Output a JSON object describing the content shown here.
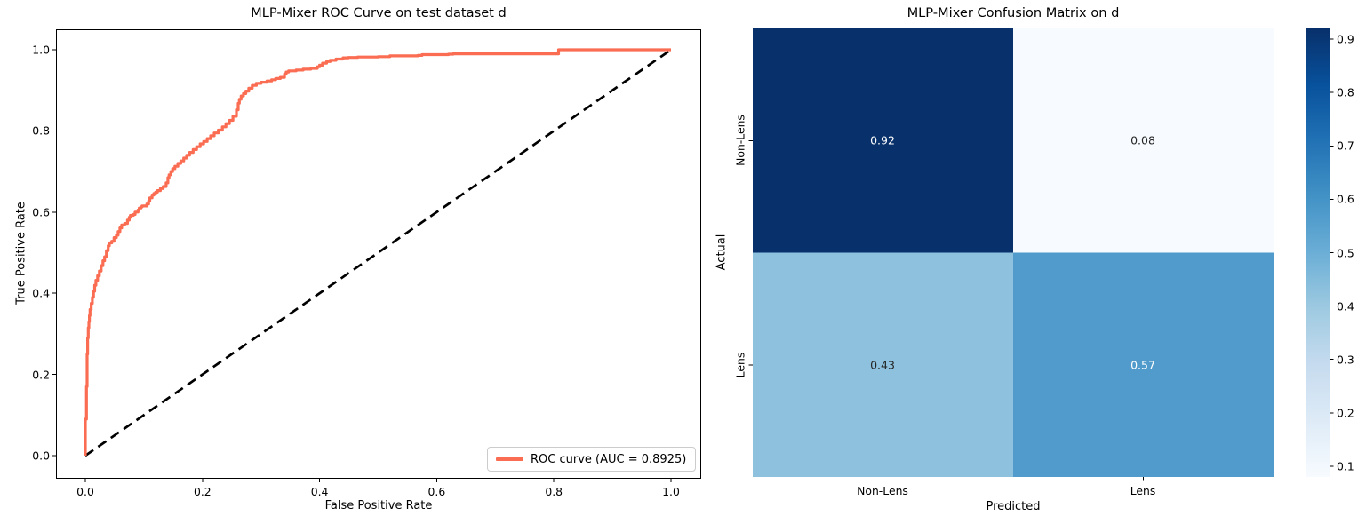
{
  "figure_bg": "#ffffff",
  "chart_data": [
    {
      "type": "line",
      "title": "MLP-Mixer ROC Curve on test dataset d",
      "xlabel": "False Positive Rate",
      "ylabel": "True Positive Rate",
      "xlim": [
        -0.05,
        1.05
      ],
      "ylim": [
        -0.05,
        1.05
      ],
      "grid": false,
      "auc": 0.8925,
      "legend": {
        "position": "lower right",
        "entries": [
          "ROC curve (AUC = 0.8925)"
        ]
      },
      "xticks": {
        "values": [
          0.0,
          0.2,
          0.4,
          0.6,
          0.8,
          1.0
        ],
        "labels": [
          "0.0",
          "0.2",
          "0.4",
          "0.6",
          "0.8",
          "1.0"
        ]
      },
      "yticks": {
        "values": [
          0.0,
          0.2,
          0.4,
          0.6,
          0.8,
          1.0
        ],
        "labels": [
          "0.0",
          "0.2",
          "0.4",
          "0.6",
          "0.8",
          "1.0"
        ]
      },
      "series": [
        {
          "name": "ROC curve (AUC = 0.8925)",
          "color": "#FB6D53",
          "style": "steps",
          "linewidth": 3.2,
          "points": [
            [
              0.0,
              0.0
            ],
            [
              0.0,
              0.05
            ],
            [
              0.002,
              0.09
            ],
            [
              0.002,
              0.13
            ],
            [
              0.003,
              0.17
            ],
            [
              0.003,
              0.21
            ],
            [
              0.004,
              0.25
            ],
            [
              0.005,
              0.29
            ],
            [
              0.006,
              0.315
            ],
            [
              0.007,
              0.33
            ],
            [
              0.008,
              0.345
            ],
            [
              0.01,
              0.36
            ],
            [
              0.012,
              0.375
            ],
            [
              0.014,
              0.39
            ],
            [
              0.016,
              0.405
            ],
            [
              0.018,
              0.42
            ],
            [
              0.021,
              0.432
            ],
            [
              0.024,
              0.443
            ],
            [
              0.027,
              0.455
            ],
            [
              0.03,
              0.468
            ],
            [
              0.033,
              0.48
            ],
            [
              0.036,
              0.49
            ],
            [
              0.039,
              0.505
            ],
            [
              0.041,
              0.517
            ],
            [
              0.045,
              0.524
            ],
            [
              0.049,
              0.528
            ],
            [
              0.053,
              0.537
            ],
            [
              0.056,
              0.543
            ],
            [
              0.059,
              0.552
            ],
            [
              0.062,
              0.561
            ],
            [
              0.067,
              0.568
            ],
            [
              0.072,
              0.572
            ],
            [
              0.075,
              0.58
            ],
            [
              0.077,
              0.587
            ],
            [
              0.082,
              0.592
            ],
            [
              0.085,
              0.594
            ],
            [
              0.09,
              0.6
            ],
            [
              0.092,
              0.605
            ],
            [
              0.095,
              0.61
            ],
            [
              0.097,
              0.613
            ],
            [
              0.105,
              0.615
            ],
            [
              0.108,
              0.62
            ],
            [
              0.11,
              0.627
            ],
            [
              0.114,
              0.635
            ],
            [
              0.117,
              0.642
            ],
            [
              0.12,
              0.646
            ],
            [
              0.123,
              0.649
            ],
            [
              0.128,
              0.653
            ],
            [
              0.133,
              0.658
            ],
            [
              0.138,
              0.663
            ],
            [
              0.141,
              0.672
            ],
            [
              0.143,
              0.685
            ],
            [
              0.146,
              0.692
            ],
            [
              0.149,
              0.7
            ],
            [
              0.153,
              0.707
            ],
            [
              0.158,
              0.713
            ],
            [
              0.163,
              0.72
            ],
            [
              0.168,
              0.726
            ],
            [
              0.173,
              0.733
            ],
            [
              0.178,
              0.74
            ],
            [
              0.184,
              0.747
            ],
            [
              0.19,
              0.754
            ],
            [
              0.196,
              0.761
            ],
            [
              0.202,
              0.768
            ],
            [
              0.208,
              0.774
            ],
            [
              0.214,
              0.781
            ],
            [
              0.22,
              0.788
            ],
            [
              0.227,
              0.795
            ],
            [
              0.234,
              0.802
            ],
            [
              0.24,
              0.81
            ],
            [
              0.246,
              0.818
            ],
            [
              0.252,
              0.826
            ],
            [
              0.258,
              0.836
            ],
            [
              0.261,
              0.852
            ],
            [
              0.263,
              0.868
            ],
            [
              0.266,
              0.878
            ],
            [
              0.27,
              0.886
            ],
            [
              0.274,
              0.892
            ],
            [
              0.279,
              0.898
            ],
            [
              0.285,
              0.905
            ],
            [
              0.292,
              0.912
            ],
            [
              0.3,
              0.917
            ],
            [
              0.31,
              0.92
            ],
            [
              0.318,
              0.923
            ],
            [
              0.325,
              0.926
            ],
            [
              0.333,
              0.929
            ],
            [
              0.34,
              0.932
            ],
            [
              0.343,
              0.94
            ],
            [
              0.347,
              0.945
            ],
            [
              0.36,
              0.948
            ],
            [
              0.372,
              0.95
            ],
            [
              0.385,
              0.952
            ],
            [
              0.396,
              0.954
            ],
            [
              0.4,
              0.958
            ],
            [
              0.405,
              0.962
            ],
            [
              0.412,
              0.967
            ],
            [
              0.418,
              0.971
            ],
            [
              0.428,
              0.974
            ],
            [
              0.44,
              0.977
            ],
            [
              0.449,
              0.98
            ],
            [
              0.465,
              0.981
            ],
            [
              0.5,
              0.982
            ],
            [
              0.52,
              0.983
            ],
            [
              0.568,
              0.985
            ],
            [
              0.575,
              0.986
            ],
            [
              0.62,
              0.988
            ],
            [
              0.628,
              0.989
            ],
            [
              0.808,
              0.99
            ],
            [
              0.812,
              1.0
            ],
            [
              1.0,
              1.0
            ]
          ]
        },
        {
          "name": "chance-diagonal",
          "color": "#000000",
          "style": "dashed",
          "linewidth": 2.7,
          "points": [
            [
              0.0,
              0.0
            ],
            [
              1.0,
              1.0
            ]
          ]
        }
      ]
    },
    {
      "type": "heatmap",
      "title": "MLP-Mixer Confusion Matrix on d",
      "xlabel": "Predicted",
      "ylabel": "Actual",
      "x_categories": [
        "Non-Lens",
        "Lens"
      ],
      "y_categories": [
        "Non-Lens",
        "Lens"
      ],
      "values": [
        [
          0.92,
          0.08
        ],
        [
          0.43,
          0.57
        ]
      ],
      "cell_labels": [
        [
          "0.92",
          "0.08"
        ],
        [
          "0.43",
          "0.57"
        ]
      ],
      "cell_colors": [
        [
          "#08306B",
          "#F7FBFF"
        ],
        [
          "#8DC1DD",
          "#509BCB"
        ]
      ],
      "cell_text_colors": [
        [
          "#FFFFFF",
          "#262626"
        ],
        [
          "#262626",
          "#FFFFFF"
        ]
      ],
      "colormap": "Blues",
      "colorbar": {
        "vmin": 0.08,
        "vmax": 0.92,
        "tick_values": [
          0.1,
          0.2,
          0.3,
          0.4,
          0.5,
          0.6,
          0.7,
          0.8,
          0.9
        ],
        "tick_labels": [
          "0.1",
          "0.2",
          "0.3",
          "0.4",
          "0.5",
          "0.6",
          "0.7",
          "0.8",
          "0.9"
        ],
        "gradient_stops": [
          "#F7FBFF",
          "#DEEBF7",
          "#C6DBEF",
          "#9ECAE1",
          "#6BAED6",
          "#4292C6",
          "#2171B5",
          "#08519C",
          "#08306B"
        ]
      }
    }
  ]
}
